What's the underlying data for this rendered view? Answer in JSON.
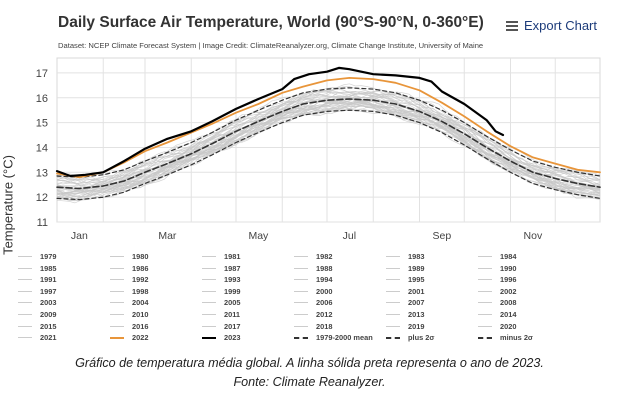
{
  "header": {
    "title": "Daily Surface Air Temperature, World (90°S-90°N, 0-360°E)",
    "subtitle": "Dataset: NCEP Climate Forecast System | Image Credit: ClimateReanalyzer.org, Climate Change Institute, University of Maine",
    "export_label": "Export Chart"
  },
  "caption": {
    "line1": "Gráfico de temperatura média global. A linha sólida preta representa o ano de 2023.",
    "line2": "Fonte: Climate Reanalyzer."
  },
  "colors": {
    "y2023": "#000000",
    "y2022": "#e8953a",
    "historical": "#c8c8c8",
    "mean": "#333333",
    "grid": "#e2e2e2"
  },
  "legend": [
    {
      "label": "1979",
      "style": "gray"
    },
    {
      "label": "1980",
      "style": "gray"
    },
    {
      "label": "1981",
      "style": "gray"
    },
    {
      "label": "1982",
      "style": "gray"
    },
    {
      "label": "1983",
      "style": "gray"
    },
    {
      "label": "1984",
      "style": "gray"
    },
    {
      "label": "1985",
      "style": "gray"
    },
    {
      "label": "1986",
      "style": "gray"
    },
    {
      "label": "1987",
      "style": "gray"
    },
    {
      "label": "1988",
      "style": "gray"
    },
    {
      "label": "1989",
      "style": "gray"
    },
    {
      "label": "1990",
      "style": "gray"
    },
    {
      "label": "1991",
      "style": "gray"
    },
    {
      "label": "1992",
      "style": "gray"
    },
    {
      "label": "1993",
      "style": "gray"
    },
    {
      "label": "1994",
      "style": "gray"
    },
    {
      "label": "1995",
      "style": "gray"
    },
    {
      "label": "1996",
      "style": "gray"
    },
    {
      "label": "1997",
      "style": "gray"
    },
    {
      "label": "1998",
      "style": "gray"
    },
    {
      "label": "1999",
      "style": "gray"
    },
    {
      "label": "2000",
      "style": "gray"
    },
    {
      "label": "2001",
      "style": "gray"
    },
    {
      "label": "2002",
      "style": "gray"
    },
    {
      "label": "2003",
      "style": "gray"
    },
    {
      "label": "2004",
      "style": "gray"
    },
    {
      "label": "2005",
      "style": "gray"
    },
    {
      "label": "2006",
      "style": "gray"
    },
    {
      "label": "2007",
      "style": "gray"
    },
    {
      "label": "2008",
      "style": "gray"
    },
    {
      "label": "2009",
      "style": "gray"
    },
    {
      "label": "2010",
      "style": "gray"
    },
    {
      "label": "2011",
      "style": "gray"
    },
    {
      "label": "2012",
      "style": "gray"
    },
    {
      "label": "2013",
      "style": "gray"
    },
    {
      "label": "2014",
      "style": "gray"
    },
    {
      "label": "2015",
      "style": "gray"
    },
    {
      "label": "2016",
      "style": "gray"
    },
    {
      "label": "2017",
      "style": "gray"
    },
    {
      "label": "2018",
      "style": "gray"
    },
    {
      "label": "2019",
      "style": "gray"
    },
    {
      "label": "2020",
      "style": "gray"
    },
    {
      "label": "2021",
      "style": "gray"
    },
    {
      "label": "2022",
      "style": "orange"
    },
    {
      "label": "2023",
      "style": "black"
    },
    {
      "label": "1979-2000 mean",
      "style": "mean"
    },
    {
      "label": "plus 2σ",
      "style": "sigma"
    },
    {
      "label": "minus 2σ",
      "style": "sigma"
    }
  ],
  "chart_data": {
    "type": "line",
    "title": "Daily Surface Air Temperature, World (90°S-90°N, 0-360°E)",
    "ylabel": "Temperature (°C)",
    "xlabel": "",
    "ylim": [
      11,
      17.6
    ],
    "xlim": [
      1,
      365
    ],
    "yticks": [
      11,
      12,
      13,
      14,
      15,
      16,
      17
    ],
    "xticks": [
      {
        "label": "Jan",
        "day": 16
      },
      {
        "label": "Mar",
        "day": 75
      },
      {
        "label": "May",
        "day": 136
      },
      {
        "label": "Jul",
        "day": 197
      },
      {
        "label": "Sep",
        "day": 259
      },
      {
        "label": "Nov",
        "day": 320
      }
    ],
    "grid": true,
    "x_unit": "day of year",
    "series": [
      {
        "name": "1979-2000 mean",
        "style": "mean",
        "x": [
          1,
          16,
          32,
          46,
          60,
          75,
          91,
          105,
          121,
          136,
          152,
          166,
          182,
          197,
          213,
          228,
          244,
          259,
          274,
          289,
          305,
          320,
          335,
          350,
          365
        ],
        "y": [
          12.4,
          12.35,
          12.45,
          12.65,
          13.0,
          13.35,
          13.75,
          14.15,
          14.65,
          15.05,
          15.45,
          15.75,
          15.9,
          15.95,
          15.9,
          15.75,
          15.45,
          15.05,
          14.55,
          14.0,
          13.45,
          13.0,
          12.75,
          12.55,
          12.4
        ]
      },
      {
        "name": "plus 2σ",
        "style": "sigma",
        "x": [
          1,
          16,
          32,
          46,
          60,
          75,
          91,
          105,
          121,
          136,
          152,
          166,
          182,
          197,
          213,
          228,
          244,
          259,
          274,
          289,
          305,
          320,
          335,
          350,
          365
        ],
        "y": [
          12.85,
          12.8,
          12.9,
          13.1,
          13.45,
          13.8,
          14.2,
          14.6,
          15.1,
          15.5,
          15.9,
          16.2,
          16.35,
          16.4,
          16.35,
          16.2,
          15.9,
          15.5,
          15.0,
          14.45,
          13.9,
          13.45,
          13.2,
          13.0,
          12.85
        ]
      },
      {
        "name": "minus 2σ",
        "style": "sigma",
        "x": [
          1,
          16,
          32,
          46,
          60,
          75,
          91,
          105,
          121,
          136,
          152,
          166,
          182,
          197,
          213,
          228,
          244,
          259,
          274,
          289,
          305,
          320,
          335,
          350,
          365
        ],
        "y": [
          11.95,
          11.9,
          12.0,
          12.2,
          12.55,
          12.9,
          13.3,
          13.7,
          14.2,
          14.6,
          15.0,
          15.3,
          15.45,
          15.5,
          15.45,
          15.3,
          15.0,
          14.6,
          14.1,
          13.55,
          13.0,
          12.55,
          12.3,
          12.1,
          11.95
        ]
      },
      {
        "name": "2022",
        "style": "orange",
        "x": [
          1,
          16,
          32,
          46,
          60,
          75,
          91,
          105,
          121,
          136,
          152,
          166,
          182,
          197,
          213,
          228,
          244,
          259,
          274,
          289,
          305,
          320,
          335,
          350,
          365
        ],
        "y": [
          12.95,
          12.8,
          13.0,
          13.4,
          13.85,
          14.2,
          14.6,
          14.95,
          15.4,
          15.75,
          16.2,
          16.45,
          16.7,
          16.8,
          16.75,
          16.6,
          16.3,
          15.8,
          15.25,
          14.65,
          14.05,
          13.6,
          13.35,
          13.1,
          13.0
        ]
      },
      {
        "name": "2023",
        "style": "black",
        "x": [
          1,
          10,
          20,
          32,
          46,
          60,
          75,
          91,
          105,
          121,
          136,
          152,
          160,
          170,
          182,
          190,
          197,
          205,
          213,
          228,
          244,
          252,
          259,
          274,
          289,
          295,
          300
        ],
        "y": [
          13.05,
          12.85,
          12.9,
          13.0,
          13.45,
          13.95,
          14.35,
          14.65,
          15.05,
          15.55,
          15.95,
          16.35,
          16.75,
          16.95,
          17.05,
          17.2,
          17.15,
          17.05,
          16.95,
          16.9,
          16.8,
          16.65,
          16.25,
          15.75,
          15.1,
          14.65,
          14.5
        ]
      }
    ]
  }
}
